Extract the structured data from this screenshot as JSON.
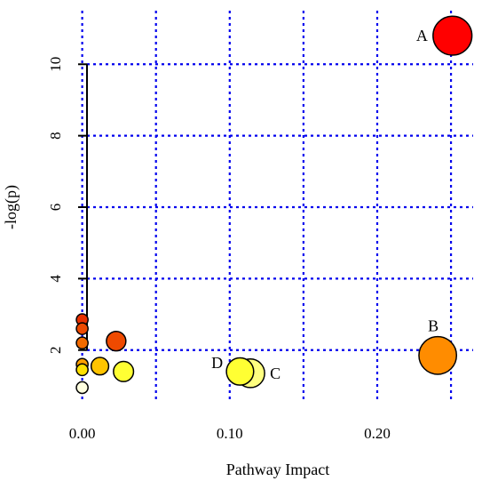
{
  "chart_data": {
    "type": "scatter",
    "xlabel": "Pathway Impact",
    "ylabel": "-log(p)",
    "xlim": [
      -0.01,
      0.265
    ],
    "ylim": [
      0.6,
      11.5
    ],
    "x_ticks": [
      {
        "value": 0.0,
        "label": "0.00"
      },
      {
        "value": 0.1,
        "label": "0.10"
      },
      {
        "value": 0.2,
        "label": "0.20"
      }
    ],
    "y_ticks": [
      {
        "value": 2,
        "label": "2"
      },
      {
        "value": 4,
        "label": "4"
      },
      {
        "value": 6,
        "label": "6"
      },
      {
        "value": 8,
        "label": "8"
      },
      {
        "value": 10,
        "label": "10"
      }
    ],
    "grid": true,
    "grid_x": [
      0.0,
      0.05,
      0.1,
      0.15,
      0.2,
      0.25
    ],
    "grid_y": [
      2,
      4,
      6,
      8,
      10
    ],
    "grid_color": "#0000EE",
    "points": [
      {
        "x": 0.251,
        "y": 10.8,
        "label": "A",
        "color": "#FF0000",
        "size": 3.0
      },
      {
        "x": 0.241,
        "y": 1.85,
        "label": "B",
        "color": "#FF8C00",
        "size": 2.9
      },
      {
        "x": 0.114,
        "y": 1.35,
        "label": "C",
        "color": "#FFFF80",
        "size": 2.2
      },
      {
        "x": 0.107,
        "y": 1.4,
        "label": "D",
        "color": "#FFFF33",
        "size": 2.1
      },
      {
        "x": 0.0,
        "y": 2.85,
        "label": "",
        "color": "#E83000",
        "size": 0.9
      },
      {
        "x": 0.0,
        "y": 2.6,
        "label": "",
        "color": "#EE4A00",
        "size": 0.9
      },
      {
        "x": 0.0,
        "y": 2.2,
        "label": "",
        "color": "#F26A00",
        "size": 0.9
      },
      {
        "x": 0.023,
        "y": 2.25,
        "label": "",
        "color": "#EE4A00",
        "size": 1.5
      },
      {
        "x": 0.0,
        "y": 1.6,
        "label": "",
        "color": "#FFA000",
        "size": 0.9
      },
      {
        "x": 0.012,
        "y": 1.55,
        "label": "",
        "color": "#FFC400",
        "size": 1.35
      },
      {
        "x": 0.0,
        "y": 1.45,
        "label": "",
        "color": "#FFE000",
        "size": 0.9
      },
      {
        "x": 0.028,
        "y": 1.4,
        "label": "",
        "color": "#FFFF33",
        "size": 1.55
      },
      {
        "x": 0.0,
        "y": 0.95,
        "label": "",
        "color": "#FFFFE0",
        "size": 0.9
      }
    ]
  }
}
